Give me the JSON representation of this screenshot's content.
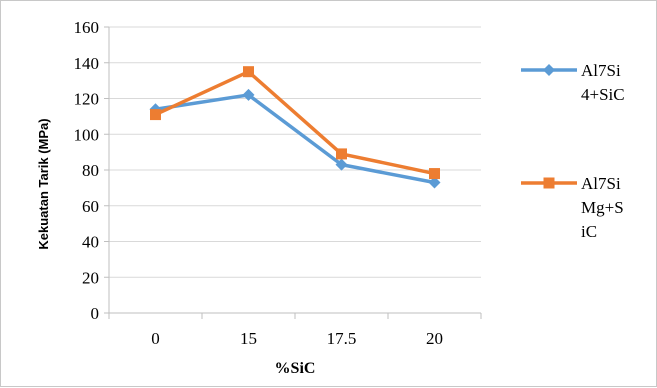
{
  "chart_data": {
    "type": "line",
    "categories": [
      "0",
      "15",
      "17.5",
      "20"
    ],
    "series": [
      {
        "name": "Al7Si 4+SiC",
        "legend_lines": [
          "Al7Si",
          "4+SiC"
        ],
        "values": [
          114,
          122,
          83,
          73
        ],
        "color": "#5b9bd5",
        "marker": "diamond"
      },
      {
        "name": "Al7Si Mg+SiC",
        "legend_lines": [
          "Al7Si",
          "Mg+S",
          "iC"
        ],
        "values": [
          111,
          135,
          89,
          78
        ],
        "color": "#ed7d31",
        "marker": "square"
      }
    ],
    "xlabel": "%SiC",
    "ylabel": "Kekuatan Tarik (MPa)",
    "ylim": [
      0,
      160
    ],
    "yticks": [
      "0",
      "20",
      "40",
      "60",
      "80",
      "100",
      "120",
      "140",
      "160"
    ],
    "grid": true,
    "legend_position": "right"
  }
}
